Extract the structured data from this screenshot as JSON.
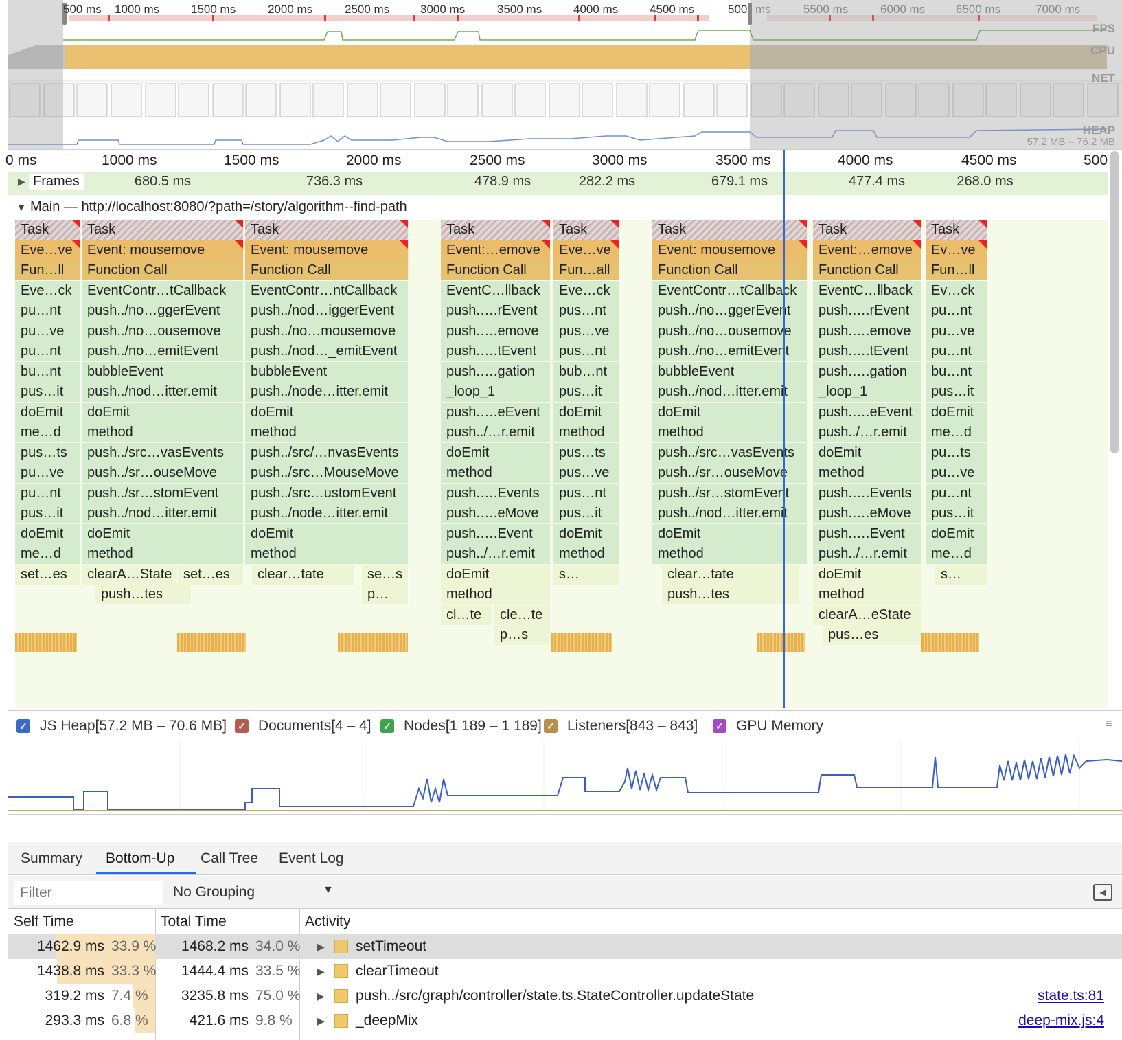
{
  "overview": {
    "ticks": [
      "500 ms",
      "1000 ms",
      "1500 ms",
      "2000 ms",
      "2500 ms",
      "3000 ms",
      "3500 ms",
      "4000 ms",
      "4500 ms",
      "500",
      "ms",
      "5500 ms",
      "6000 ms",
      "6500 ms",
      "7000 ms"
    ],
    "tracks": {
      "fps": "FPS",
      "cpu": "CPU",
      "net": "NET",
      "heap": "HEAP"
    },
    "heap_range": "57.2 MB – 76.2 MB"
  },
  "ruler": {
    "ticks": [
      "0 ms",
      "1000 ms",
      "1500 ms",
      "2000 ms",
      "2500 ms",
      "3000 ms",
      "3500 ms",
      "4000 ms",
      "4500 ms",
      "500"
    ]
  },
  "frames": {
    "label": "Frames",
    "durations": [
      "680.5 ms",
      "736.3 ms",
      "478.9 ms",
      "282.2 ms",
      "679.1 ms",
      "477.4 ms",
      "268.0 ms"
    ]
  },
  "main": {
    "title": "Main — http://localhost:8080/?path=/story/algorithm--find-path"
  },
  "flame": {
    "col1": [
      "Task",
      "Eve…ve",
      "Fun…ll",
      "Eve…ck",
      "pu…nt",
      "pu…ve",
      "pu…nt",
      "bu…nt",
      "pus…it",
      "doEmit",
      "me…d",
      "pus…ts",
      "pu…ve",
      "pu…nt",
      "pus…it",
      "doEmit",
      "me…d",
      "set…es"
    ],
    "col2": [
      "Task",
      "Event: mousemove",
      "Function Call",
      "EventContr…tCallback",
      "push../no…ggerEvent",
      "push../no…ousemove",
      "push../no…emitEvent",
      "bubbleEvent",
      "push../nod…itter.emit",
      "doEmit",
      "method",
      "push../src…vasEvents",
      "push../sr…ouseMove",
      "push../sr…stomEvent",
      "push../nod…itter.emit",
      "doEmit",
      "method",
      "clearA…State",
      "push…tes",
      "set…es"
    ],
    "col3": [
      "Task",
      "Event: mousemove",
      "Function Call",
      "EventContr…ntCallback",
      "push../nod…iggerEvent",
      "push../no…mousemove",
      "push../nod…_emitEvent",
      "bubbleEvent",
      "push../node…itter.emit",
      "doEmit",
      "method",
      "push../src/…nvasEvents",
      "push../src…MouseMove",
      "push../src…ustomEvent",
      "push../node…itter.emit",
      "doEmit",
      "method",
      "clear…tate",
      "se…s",
      "p…"
    ],
    "col4": [
      "Task",
      "Event:…emove",
      "Function Call",
      "EventC…llback",
      "push.….rEvent",
      "push.….emove",
      "push.….tEvent",
      "push.….gation",
      "_loop_1",
      "push.….eEvent",
      "push../…r.emit",
      "doEmit",
      "method",
      "push.….Events",
      "push.….eMove",
      "push.….Event",
      "push../…r.emit",
      "doEmit",
      "method",
      "cl…te",
      "cle…te",
      "p…s"
    ],
    "col5": [
      "Task",
      "Eve…ve",
      "Fun…all",
      "Eve…ck",
      "pus…nt",
      "pus…ve",
      "pus…nt",
      "bub…nt",
      "pus…it",
      "doEmit",
      "method",
      "pus…ts",
      "pus…ve",
      "pus…nt",
      "pus…it",
      "doEmit",
      "method",
      "s…"
    ],
    "col6": [
      "Task",
      "Event: mousemove",
      "Function Call",
      "EventContr…tCallback",
      "push../no…ggerEvent",
      "push../no…ousemove",
      "push../no…emitEvent",
      "bubbleEvent",
      "push../nod…itter.emit",
      "doEmit",
      "method",
      "push../src…vasEvents",
      "push../sr…ouseMove",
      "push../sr…stomEvent",
      "push../nod…itter.emit",
      "doEmit",
      "method",
      "clear…tate",
      "push…tes"
    ],
    "col7": [
      "Task",
      "Event:…emove",
      "Function Call",
      "EventC…llback",
      "push.….rEvent",
      "push.….emove",
      "push.….tEvent",
      "push.….gation",
      "_loop_1",
      "push.….eEvent",
      "push../…r.emit",
      "doEmit",
      "method",
      "push.….Events",
      "push.….eMove",
      "push.….Event",
      "push../…r.emit",
      "doEmit",
      "method",
      "clearA…eState",
      "pus…es"
    ],
    "col8": [
      "Task",
      "Ev…ve",
      "Fun…ll",
      "Ev…ck",
      "pu…nt",
      "pu…ve",
      "pu…nt",
      "bu…nt",
      "pus…it",
      "doEmit",
      "me…d",
      "pu…ts",
      "pu…ve",
      "pu…nt",
      "pus…it",
      "doEmit",
      "me…d",
      "s…"
    ]
  },
  "counters": [
    {
      "label": "JS Heap[57.2 MB – 70.6 MB]",
      "color": "#3b6bc6"
    },
    {
      "label": "Documents[4 – 4]",
      "color": "#b65a52"
    },
    {
      "label": "Nodes[1 189 – 1 189]",
      "color": "#3fa34d"
    },
    {
      "label": "Listeners[843 – 843]",
      "color": "#b98d4b"
    },
    {
      "label": "GPU Memory",
      "color": "#a14bc4"
    }
  ],
  "tabs": [
    "Summary",
    "Bottom-Up",
    "Call Tree",
    "Event Log"
  ],
  "toolbar": {
    "filter_placeholder": "Filter",
    "grouping": "No Grouping"
  },
  "table": {
    "headers": {
      "self": "Self Time",
      "total": "Total Time",
      "activity": "Activity"
    },
    "rows": [
      {
        "self_time": "1462.9 ms",
        "self_pct": "33.9 %",
        "total_time": "1468.2 ms",
        "total_pct": "34.0 %",
        "self_frac": 0.339,
        "total_frac": 0.34,
        "activity": "setTimeout",
        "link": ""
      },
      {
        "self_time": "1438.8 ms",
        "self_pct": "33.3 %",
        "total_time": "1444.4 ms",
        "total_pct": "33.5 %",
        "self_frac": 0.333,
        "total_frac": 0.335,
        "activity": "clearTimeout",
        "link": ""
      },
      {
        "self_time": "319.2 ms",
        "self_pct": "7.4 %",
        "total_time": "3235.8 ms",
        "total_pct": "75.0 %",
        "self_frac": 0.074,
        "total_frac": 0.75,
        "activity": "push../src/graph/controller/state.ts.StateController.updateState",
        "link": "state.ts:81"
      },
      {
        "self_time": "293.3 ms",
        "self_pct": "6.8 %",
        "total_time": "421.6 ms",
        "total_pct": "9.8 %",
        "self_frac": 0.068,
        "total_frac": 0.098,
        "activity": "_deepMix",
        "link": "deep-mix.js:4"
      }
    ]
  },
  "colors": {
    "accent": "#1a73e8",
    "cursor": "#3367d6",
    "task_red": "#e22",
    "event_yellow": "#ebbd6a"
  }
}
